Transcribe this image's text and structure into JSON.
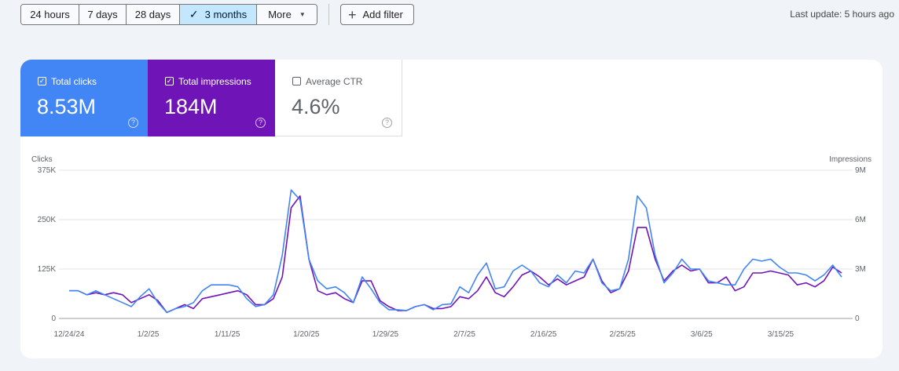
{
  "range": {
    "buttons": [
      {
        "label": "24 hours",
        "active": false
      },
      {
        "label": "7 days",
        "active": false
      },
      {
        "label": "28 days",
        "active": false
      },
      {
        "label": "3 months",
        "active": true,
        "icon": "check-icon"
      },
      {
        "label": "More",
        "active": false,
        "icon": "caret-down-icon"
      }
    ]
  },
  "add_filter": {
    "label": "Add filter",
    "icon": "plus-icon"
  },
  "last_update": "Last update: 5 hours ago",
  "metrics": [
    {
      "label": "Total clicks",
      "value": "8.53M",
      "checked": true,
      "color": "#4285f4"
    },
    {
      "label": "Total impressions",
      "value": "184M",
      "checked": true,
      "color": "#6f14b6"
    },
    {
      "label": "Average CTR",
      "value": "4.6%",
      "checked": false,
      "color": "#ffffff"
    }
  ],
  "chart_data": {
    "type": "line",
    "left_axis_label": "Clicks",
    "right_axis_label": "Impressions",
    "left_ticks": [
      "375K",
      "250K",
      "125K",
      "0"
    ],
    "right_ticks": [
      "9M",
      "6M",
      "3M",
      "0"
    ],
    "ylim_left": [
      0,
      375000
    ],
    "ylim_right": [
      0,
      9000000
    ],
    "x_labels": [
      "12/24/24",
      "1/2/25",
      "1/11/25",
      "1/20/25",
      "1/29/25",
      "2/7/25",
      "2/16/25",
      "2/25/25",
      "3/6/25",
      "3/15/25"
    ],
    "grid": true,
    "series": [
      {
        "name": "Clicks",
        "color": "#4285f4",
        "axis": "left",
        "values": [
          70000,
          70000,
          60000,
          70000,
          60000,
          50000,
          40000,
          30000,
          55000,
          75000,
          40000,
          15000,
          25000,
          30000,
          40000,
          70000,
          85000,
          85000,
          85000,
          80000,
          50000,
          30000,
          35000,
          60000,
          160000,
          325000,
          300000,
          150000,
          95000,
          75000,
          80000,
          65000,
          40000,
          105000,
          75000,
          40000,
          22000,
          22000,
          20000,
          30000,
          35000,
          22000,
          35000,
          37000,
          80000,
          65000,
          110000,
          140000,
          75000,
          80000,
          120000,
          135000,
          120000,
          90000,
          80000,
          110000,
          90000,
          120000,
          115000,
          150000,
          90000,
          70000,
          75000,
          150000,
          310000,
          280000,
          160000,
          90000,
          115000,
          150000,
          125000,
          125000,
          95000,
          90000,
          85000,
          85000,
          125000,
          150000,
          145000,
          150000,
          130000,
          115000,
          115000,
          110000,
          95000,
          110000,
          135000,
          105000
        ]
      },
      {
        "name": "Impressions",
        "color": "#6f14b6",
        "axis": "right",
        "values": [
          1680000,
          1680000,
          1440000,
          1560000,
          1440000,
          1560000,
          1440000,
          960000,
          1200000,
          1440000,
          1080000,
          360000,
          600000,
          840000,
          600000,
          1200000,
          1320000,
          1440000,
          1560000,
          1680000,
          1440000,
          840000,
          840000,
          1200000,
          2520000,
          6720000,
          7440000,
          3600000,
          1680000,
          1440000,
          1560000,
          1200000,
          960000,
          2280000,
          2280000,
          1080000,
          720000,
          480000,
          480000,
          720000,
          840000,
          600000,
          600000,
          720000,
          1320000,
          1200000,
          1680000,
          2520000,
          1560000,
          1320000,
          1920000,
          2640000,
          2880000,
          2520000,
          2040000,
          2400000,
          2040000,
          2280000,
          2520000,
          3600000,
          2280000,
          1560000,
          1800000,
          2880000,
          5520000,
          5520000,
          3600000,
          2280000,
          2880000,
          3240000,
          2880000,
          3000000,
          2160000,
          2160000,
          2520000,
          1680000,
          1920000,
          2760000,
          2760000,
          2880000,
          2760000,
          2640000,
          2040000,
          2160000,
          1920000,
          2280000,
          3120000,
          2760000
        ]
      }
    ]
  }
}
